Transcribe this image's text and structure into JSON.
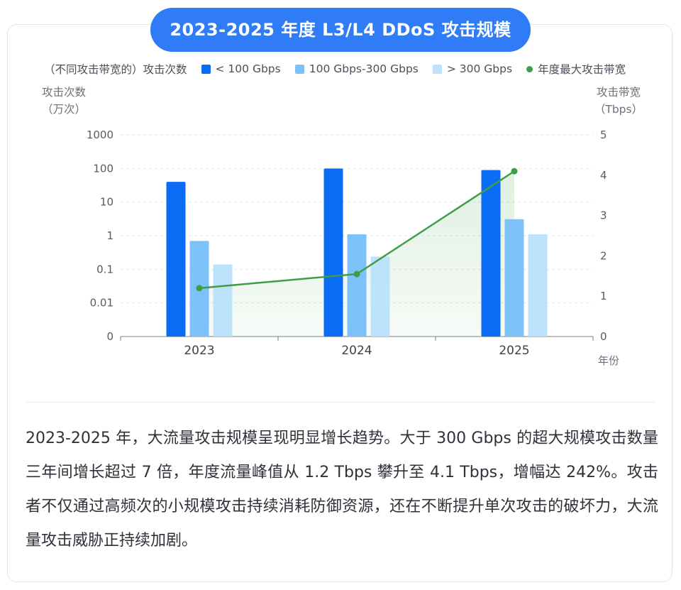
{
  "title": "2023-2025 年度 L3/L4 DDoS 攻击规模",
  "legend": {
    "prefix": "（不同攻击带宽的）攻击次数",
    "items": [
      {
        "label": "< 100 Gbps",
        "color": "#0a6bf5",
        "shape": "square"
      },
      {
        "label": "100 Gbps-300 Gbps",
        "color": "#7cc2f9",
        "shape": "square"
      },
      {
        "label": "> 300 Gbps",
        "color": "#bde3fc",
        "shape": "square"
      },
      {
        "label": "年度最大攻击带宽",
        "color": "#3e9e45",
        "shape": "dot"
      }
    ]
  },
  "axes": {
    "left_title_line1": "攻击次数",
    "left_title_line2": "（万次）",
    "right_title_line1": "攻击带宽",
    "right_title_line2": "（Tbps）",
    "x_title": "年份"
  },
  "chart_data": {
    "type": "bar",
    "categories": [
      "2023",
      "2024",
      "2025"
    ],
    "y_left": {
      "scale": "log",
      "ticks": [
        "0",
        "0.01",
        "0.1",
        "1",
        "10",
        "100",
        "1000"
      ]
    },
    "y_right": {
      "ticks": [
        "0",
        "1",
        "2",
        "3",
        "4",
        "5"
      ],
      "ylim": [
        0,
        5
      ]
    },
    "series": [
      {
        "name": "< 100 Gbps",
        "values": [
          40,
          100,
          90
        ],
        "axis": "left",
        "color": "#0a6bf5"
      },
      {
        "name": "100 Gbps-300 Gbps",
        "values": [
          0.7,
          1.1,
          3.1
        ],
        "axis": "left",
        "color": "#7cc2f9"
      },
      {
        "name": "> 300 Gbps",
        "values": [
          0.14,
          0.24,
          1.1
        ],
        "axis": "left",
        "color": "#bde3fc"
      },
      {
        "name": "年度最大攻击带宽",
        "type": "line",
        "values": [
          1.2,
          1.55,
          4.1
        ],
        "axis": "right",
        "color": "#3e9e45"
      }
    ],
    "grid": true,
    "legend_position": "top"
  },
  "description": "2023-2025 年，大流量攻击规模呈现明显增长趋势。大于 300 Gbps 的超大规模攻击数量三年间增长超过 7 倍，年度流量峰值从 1.2 Tbps 攀升至 4.1 Tbps，增幅达 242%。攻击者不仅通过高频次的小规模攻击持续消耗防御资源，还在不断提升单次攻击的破坏力，大流量攻击威胁正持续加剧。"
}
